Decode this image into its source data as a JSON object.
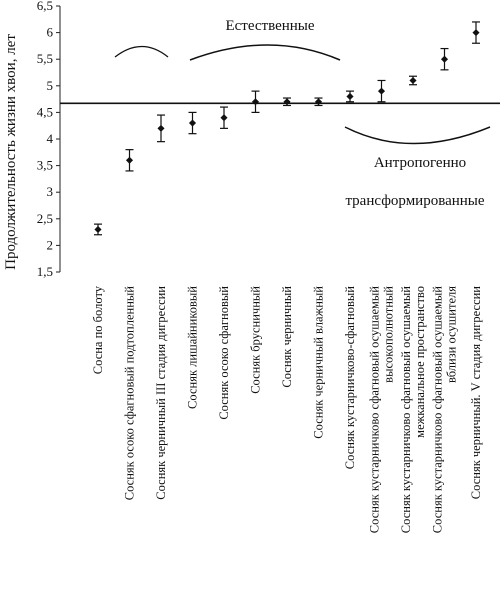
{
  "chart_data": {
    "type": "scatter",
    "ylabel": "Продолжительность жизни хвои, лет",
    "ylim": [
      1.5,
      6.5
    ],
    "yticks": [
      "1,5",
      "2",
      "2,5",
      "3",
      "3,5",
      "4",
      "4,5",
      "5",
      "5,5",
      "6",
      "6,5"
    ],
    "grid": false,
    "reference_line": 4.67,
    "categories": [
      [
        "Сосна по болоту"
      ],
      [
        "Сосняк осоко сфагновый подтопленный"
      ],
      [
        "Сосняк черничный III стадия дигрессии"
      ],
      [
        "Сосняк лишайниковый"
      ],
      [
        "Сосняк осоко сфагновый"
      ],
      [
        "Сосняк брусничный"
      ],
      [
        "Сосняк черничный"
      ],
      [
        "Сосняк черничный влажный"
      ],
      [
        "Сосняк кустарничково-сфагновый"
      ],
      [
        "Сосняк кустарничково сфагновый осушаемый",
        "высокополнотный"
      ],
      [
        "Сосняк кустарничково сфагновый осушаемый",
        "межканальное пространство"
      ],
      [
        "Сосняк кустарничково сфагновый осушаемый",
        "вблизи осушителя"
      ],
      [
        "Сосняк черничный. V стадия дигрессии"
      ]
    ],
    "values": [
      2.3,
      3.6,
      4.2,
      4.3,
      4.4,
      4.7,
      4.7,
      4.7,
      4.8,
      4.9,
      5.1,
      5.5,
      6.0
    ],
    "errors": [
      0.1,
      0.2,
      0.25,
      0.2,
      0.2,
      0.2,
      0.07,
      0.07,
      0.1,
      0.2,
      0.08,
      0.2,
      0.2
    ],
    "annotations": [
      {
        "text": "Естественные"
      },
      {
        "text": "Антропогенно"
      },
      {
        "text": "трансформированные"
      }
    ]
  }
}
